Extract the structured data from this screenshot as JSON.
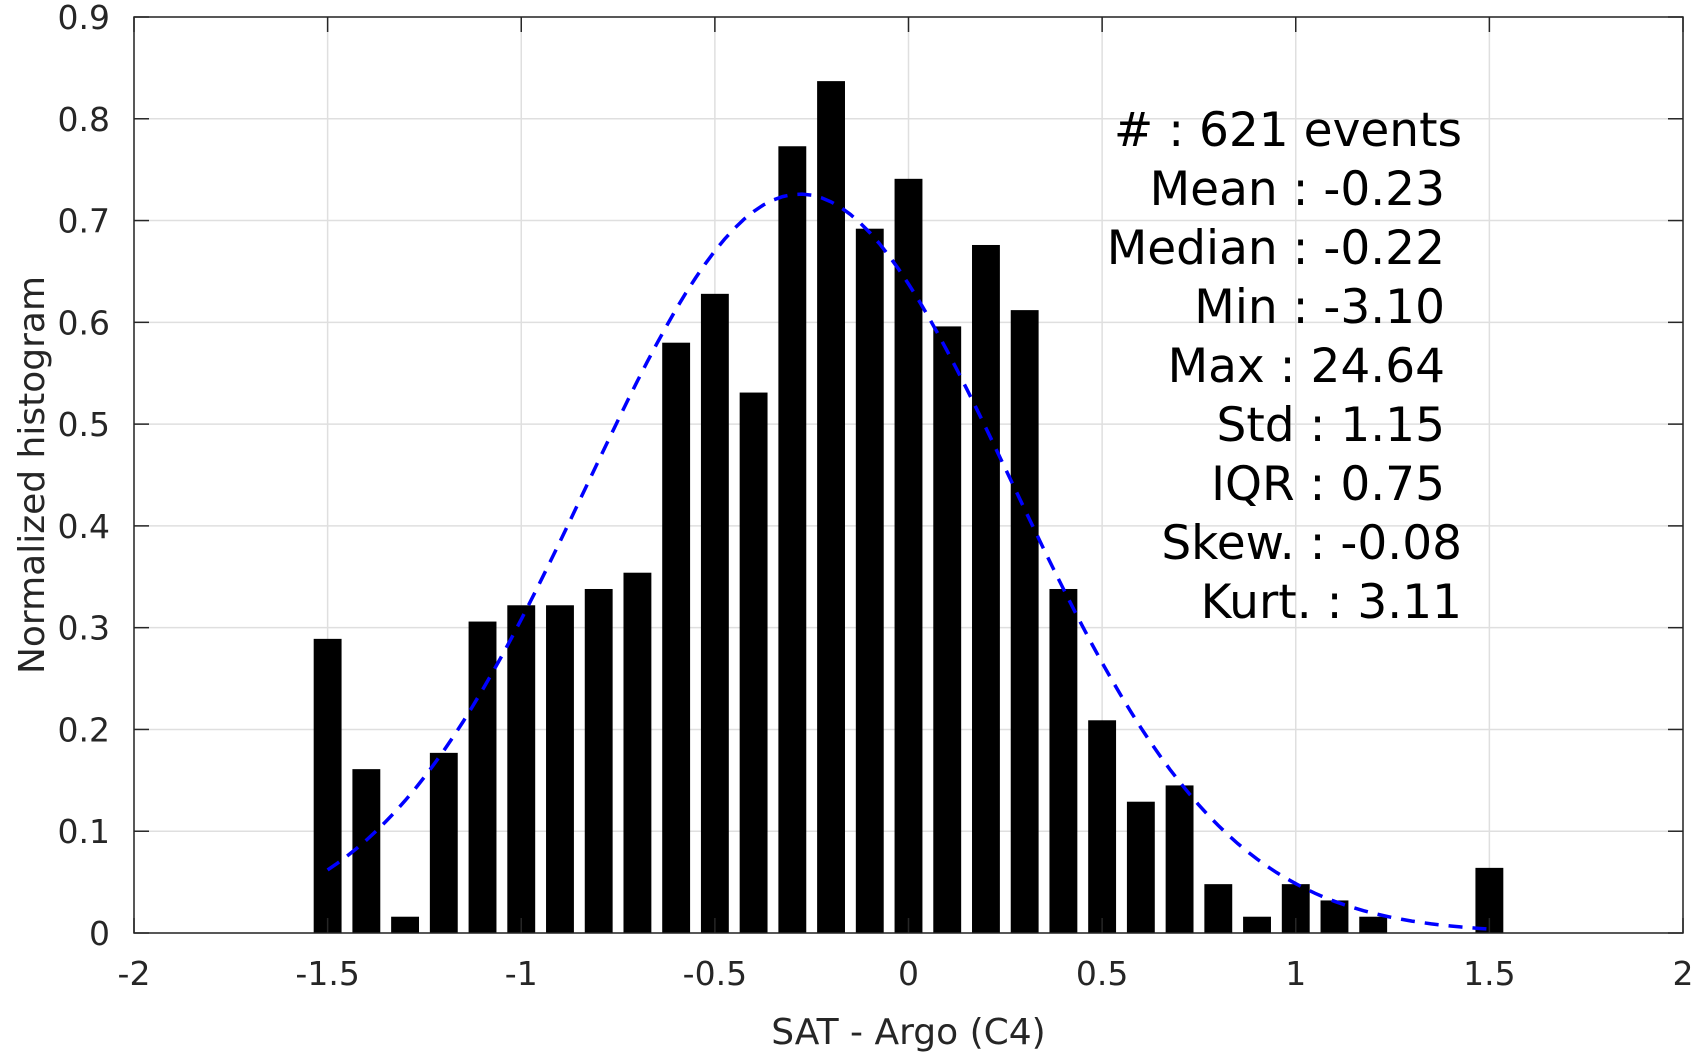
{
  "chart_data": {
    "type": "bar",
    "xlabel": "SAT - Argo (C4)",
    "ylabel": "Normalized histogram",
    "xlim": [
      -2,
      2
    ],
    "ylim": [
      0,
      0.9
    ],
    "grid": true,
    "xticks": [
      "-2",
      "-1.5",
      "-1",
      "-0.5",
      "0",
      "0.5",
      "1",
      "1.5",
      "2"
    ],
    "yticks": [
      "0",
      "0.1",
      "0.2",
      "0.3",
      "0.4",
      "0.5",
      "0.6",
      "0.7",
      "0.8",
      "0.9"
    ],
    "bar_color": "#000000",
    "bars": [
      {
        "x": -1.5,
        "y": 0.289
      },
      {
        "x": -1.4,
        "y": 0.161
      },
      {
        "x": -1.3,
        "y": 0.016
      },
      {
        "x": -1.2,
        "y": 0.177
      },
      {
        "x": -1.1,
        "y": 0.306
      },
      {
        "x": -1.0,
        "y": 0.322
      },
      {
        "x": -0.9,
        "y": 0.322
      },
      {
        "x": -0.8,
        "y": 0.338
      },
      {
        "x": -0.7,
        "y": 0.354
      },
      {
        "x": -0.6,
        "y": 0.58
      },
      {
        "x": -0.5,
        "y": 0.628
      },
      {
        "x": -0.4,
        "y": 0.531
      },
      {
        "x": -0.3,
        "y": 0.773
      },
      {
        "x": -0.2,
        "y": 0.837
      },
      {
        "x": -0.1,
        "y": 0.692
      },
      {
        "x": 0.0,
        "y": 0.741
      },
      {
        "x": 0.1,
        "y": 0.596
      },
      {
        "x": 0.2,
        "y": 0.676
      },
      {
        "x": 0.3,
        "y": 0.612
      },
      {
        "x": 0.4,
        "y": 0.338
      },
      {
        "x": 0.5,
        "y": 0.209
      },
      {
        "x": 0.6,
        "y": 0.129
      },
      {
        "x": 0.7,
        "y": 0.145
      },
      {
        "x": 0.8,
        "y": 0.048
      },
      {
        "x": 0.9,
        "y": 0.016
      },
      {
        "x": 1.0,
        "y": 0.048
      },
      {
        "x": 1.1,
        "y": 0.032
      },
      {
        "x": 1.2,
        "y": 0.016
      },
      {
        "x": 1.5,
        "y": 0.064
      }
    ],
    "fit_curve": {
      "style": "dashed",
      "color": "#0000ff",
      "x_range": [
        -1.5,
        1.5
      ],
      "mean": -0.28,
      "std": 0.55,
      "peak": 0.726
    },
    "annotations": [
      "#  : 621 events",
      "Mean : -0.23",
      "Median : -0.22",
      "Min : -3.10",
      "Max : 24.64",
      "Std : 1.15",
      "IQR : 0.75",
      "Skew. : -0.08",
      "Kurt. : 3.11"
    ]
  }
}
